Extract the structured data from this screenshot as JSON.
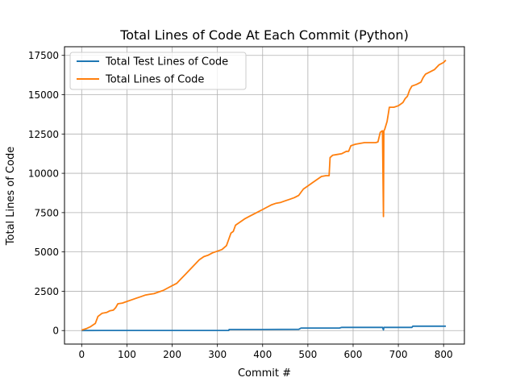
{
  "chart_data": {
    "type": "line",
    "title": "Total Lines of Code At Each Commit (Python)",
    "xlabel": "Commit #",
    "ylabel": "Total Lines of Code",
    "xlim": [
      -38,
      846
    ],
    "ylim": [
      -860,
      18050
    ],
    "xticks": [
      0,
      100,
      200,
      300,
      400,
      500,
      600,
      700,
      800
    ],
    "yticks": [
      0,
      2500,
      5000,
      7500,
      10000,
      12500,
      15000,
      17500
    ],
    "xtick_labels": [
      "0",
      "100",
      "200",
      "300",
      "400",
      "500",
      "600",
      "700",
      "800"
    ],
    "ytick_labels": [
      "0",
      "2500",
      "5000",
      "7500",
      "10000",
      "12500",
      "15000",
      "17500"
    ],
    "grid": true,
    "legend_position": "upper-left",
    "series": [
      {
        "name": "Total Test Lines of Code",
        "color": "#1f77b4",
        "points": [
          [
            0,
            0
          ],
          [
            50,
            5
          ],
          [
            100,
            5
          ],
          [
            200,
            5
          ],
          [
            300,
            5
          ],
          [
            325,
            5
          ],
          [
            326,
            70
          ],
          [
            400,
            70
          ],
          [
            480,
            80
          ],
          [
            485,
            160
          ],
          [
            570,
            160
          ],
          [
            575,
            200
          ],
          [
            665,
            200
          ],
          [
            667,
            40
          ],
          [
            668,
            200
          ],
          [
            730,
            200
          ],
          [
            732,
            280
          ],
          [
            805,
            280
          ]
        ]
      },
      {
        "name": "Total Lines of Code",
        "color": "#ff7f0e",
        "points": [
          [
            0,
            30
          ],
          [
            10,
            120
          ],
          [
            20,
            250
          ],
          [
            30,
            450
          ],
          [
            36,
            900
          ],
          [
            45,
            1100
          ],
          [
            55,
            1150
          ],
          [
            62,
            1250
          ],
          [
            70,
            1300
          ],
          [
            75,
            1450
          ],
          [
            80,
            1700
          ],
          [
            90,
            1750
          ],
          [
            100,
            1850
          ],
          [
            110,
            1950
          ],
          [
            120,
            2050
          ],
          [
            130,
            2150
          ],
          [
            140,
            2250
          ],
          [
            150,
            2300
          ],
          [
            160,
            2350
          ],
          [
            170,
            2450
          ],
          [
            180,
            2550
          ],
          [
            190,
            2700
          ],
          [
            200,
            2850
          ],
          [
            210,
            3000
          ],
          [
            220,
            3300
          ],
          [
            230,
            3600
          ],
          [
            240,
            3900
          ],
          [
            250,
            4200
          ],
          [
            260,
            4500
          ],
          [
            270,
            4700
          ],
          [
            280,
            4800
          ],
          [
            290,
            4950
          ],
          [
            300,
            5050
          ],
          [
            310,
            5150
          ],
          [
            320,
            5400
          ],
          [
            325,
            5800
          ],
          [
            330,
            6200
          ],
          [
            335,
            6300
          ],
          [
            340,
            6700
          ],
          [
            350,
            6900
          ],
          [
            360,
            7100
          ],
          [
            370,
            7250
          ],
          [
            380,
            7400
          ],
          [
            390,
            7550
          ],
          [
            400,
            7700
          ],
          [
            410,
            7850
          ],
          [
            420,
            8000
          ],
          [
            430,
            8100
          ],
          [
            440,
            8150
          ],
          [
            450,
            8250
          ],
          [
            460,
            8350
          ],
          [
            470,
            8450
          ],
          [
            480,
            8600
          ],
          [
            485,
            8800
          ],
          [
            490,
            9000
          ],
          [
            500,
            9200
          ],
          [
            510,
            9400
          ],
          [
            520,
            9600
          ],
          [
            530,
            9800
          ],
          [
            540,
            9850
          ],
          [
            547,
            9850
          ],
          [
            549,
            11000
          ],
          [
            555,
            11150
          ],
          [
            565,
            11200
          ],
          [
            575,
            11250
          ],
          [
            585,
            11400
          ],
          [
            590,
            11400
          ],
          [
            595,
            11750
          ],
          [
            605,
            11850
          ],
          [
            615,
            11900
          ],
          [
            625,
            11950
          ],
          [
            635,
            11950
          ],
          [
            645,
            11950
          ],
          [
            650,
            11950
          ],
          [
            655,
            12000
          ],
          [
            660,
            12600
          ],
          [
            664,
            12700
          ],
          [
            665,
            12700
          ],
          [
            667,
            7250
          ],
          [
            668,
            12700
          ],
          [
            670,
            12800
          ],
          [
            675,
            13300
          ],
          [
            678,
            13800
          ],
          [
            680,
            14200
          ],
          [
            690,
            14200
          ],
          [
            700,
            14300
          ],
          [
            710,
            14500
          ],
          [
            715,
            14750
          ],
          [
            720,
            14900
          ],
          [
            725,
            15300
          ],
          [
            730,
            15550
          ],
          [
            740,
            15650
          ],
          [
            750,
            15800
          ],
          [
            755,
            16100
          ],
          [
            760,
            16300
          ],
          [
            770,
            16450
          ],
          [
            780,
            16600
          ],
          [
            790,
            16900
          ],
          [
            800,
            17050
          ],
          [
            805,
            17200
          ]
        ]
      }
    ]
  }
}
